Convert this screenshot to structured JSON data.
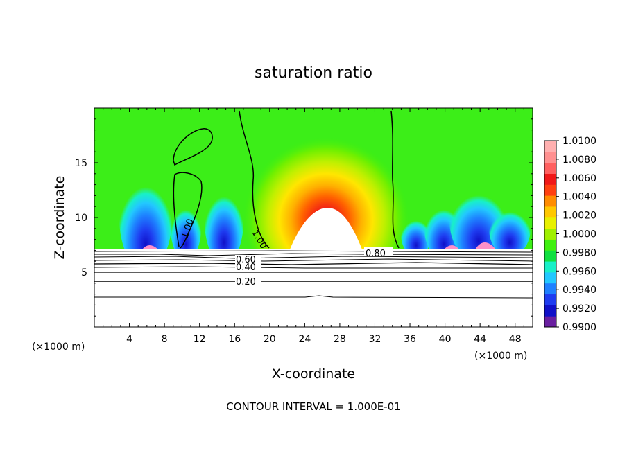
{
  "chart_data": {
    "type": "heatmap",
    "title": "saturation ratio",
    "xlabel": "X-coordinate",
    "ylabel": "Z-coordinate",
    "x_unit_left": "(×1000 m)",
    "x_unit_right": "(×1000 m)",
    "footer": "CONTOUR INTERVAL = 1.000E-01",
    "xlim": [
      0,
      50
    ],
    "ylim": [
      0,
      20
    ],
    "x_ticks": [
      4,
      8,
      12,
      16,
      20,
      24,
      28,
      32,
      36,
      40,
      44,
      48
    ],
    "x_tick_labels": [
      "4",
      "8",
      "12",
      "16",
      "20",
      "24",
      "28",
      "32",
      "36",
      "40",
      "44",
      "48"
    ],
    "y_ticks": [
      5,
      10,
      15
    ],
    "y_tick_labels": [
      "5",
      "10",
      "15"
    ],
    "colorbar": {
      "min": 0.99,
      "max": 1.01,
      "labels": [
        "1.0100",
        "1.0080",
        "1.0060",
        "1.0040",
        "1.0020",
        "1.0000",
        "0.9980",
        "0.9960",
        "0.9940",
        "0.9920",
        "0.9900"
      ],
      "colors": [
        "#6a1fa0",
        "#1010c8",
        "#1e3cf0",
        "#1e80ff",
        "#22c8ff",
        "#18f0c8",
        "#10e040",
        "#40f010",
        "#a0f000",
        "#e8f000",
        "#ffc800",
        "#ff8c00",
        "#ff4010",
        "#f01818",
        "#ff6060",
        "#ff9090",
        "#ffb0b0"
      ]
    },
    "contour_labels": [
      "1.00",
      "1.00",
      "0.80",
      "0.60",
      "0.40",
      "0.20"
    ]
  }
}
